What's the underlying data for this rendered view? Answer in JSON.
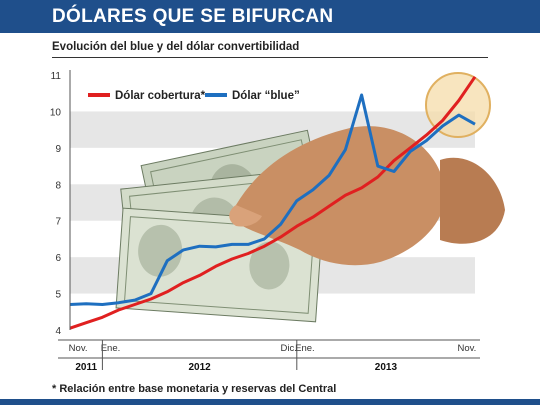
{
  "header": {
    "title": "DÓLARES QUE SE BIFURCAN",
    "subtitle": "Evolución del blue y del dólar convertibilidad"
  },
  "footnote": "* Relación entre base monetaria y reservas del Central",
  "chart_data": {
    "type": "line",
    "ylim": [
      4,
      11
    ],
    "yticks": [
      "4",
      "5",
      "6",
      "7",
      "8",
      "9",
      "10",
      "11"
    ],
    "grid": "horizontal bands",
    "legend_position": "top-left",
    "x_month_ticks": [
      {
        "label": "Nov.",
        "t": 0.5
      },
      {
        "label": "Ene.",
        "t": 2.5
      },
      {
        "label": "Dic.",
        "t": 13.5
      },
      {
        "label": "Ene.",
        "t": 14.5
      },
      {
        "label": "Nov.",
        "t": 24.5
      }
    ],
    "x_year_groups": [
      {
        "label": "2011",
        "start": 0,
        "end": 2
      },
      {
        "label": "2012",
        "start": 2,
        "end": 14
      },
      {
        "label": "2013",
        "start": 14,
        "end": 25
      }
    ],
    "series": [
      {
        "name": "Dólar cobertura*",
        "color": "#e02020",
        "points": [
          [
            0,
            4.05
          ],
          [
            1,
            4.2
          ],
          [
            2,
            4.35
          ],
          [
            3,
            4.55
          ],
          [
            4,
            4.7
          ],
          [
            5,
            4.85
          ],
          [
            6,
            5.05
          ],
          [
            7,
            5.3
          ],
          [
            8,
            5.5
          ],
          [
            9,
            5.75
          ],
          [
            10,
            5.95
          ],
          [
            11,
            6.1
          ],
          [
            12,
            6.3
          ],
          [
            13,
            6.55
          ],
          [
            14,
            6.85
          ],
          [
            15,
            7.1
          ],
          [
            16,
            7.4
          ],
          [
            17,
            7.7
          ],
          [
            18,
            7.9
          ],
          [
            19,
            8.2
          ],
          [
            20,
            8.65
          ],
          [
            21,
            9.0
          ],
          [
            22,
            9.35
          ],
          [
            23,
            9.75
          ],
          [
            24,
            10.3
          ],
          [
            25,
            10.95
          ]
        ]
      },
      {
        "name": "Dólar “blue”",
        "color": "#1e6fc0",
        "points": [
          [
            0,
            4.7
          ],
          [
            1,
            4.72
          ],
          [
            2,
            4.7
          ],
          [
            3,
            4.75
          ],
          [
            4,
            4.82
          ],
          [
            5,
            5.0
          ],
          [
            6,
            5.9
          ],
          [
            7,
            6.2
          ],
          [
            8,
            6.3
          ],
          [
            9,
            6.28
          ],
          [
            10,
            6.35
          ],
          [
            11,
            6.35
          ],
          [
            12,
            6.5
          ],
          [
            13,
            6.9
          ],
          [
            14,
            7.55
          ],
          [
            15,
            7.85
          ],
          [
            16,
            8.25
          ],
          [
            17,
            8.95
          ],
          [
            18,
            10.45
          ],
          [
            19,
            8.5
          ],
          [
            20,
            8.35
          ],
          [
            21,
            8.9
          ],
          [
            22,
            9.2
          ],
          [
            23,
            9.6
          ],
          [
            24,
            9.9
          ],
          [
            25,
            9.65
          ]
        ]
      }
    ]
  }
}
